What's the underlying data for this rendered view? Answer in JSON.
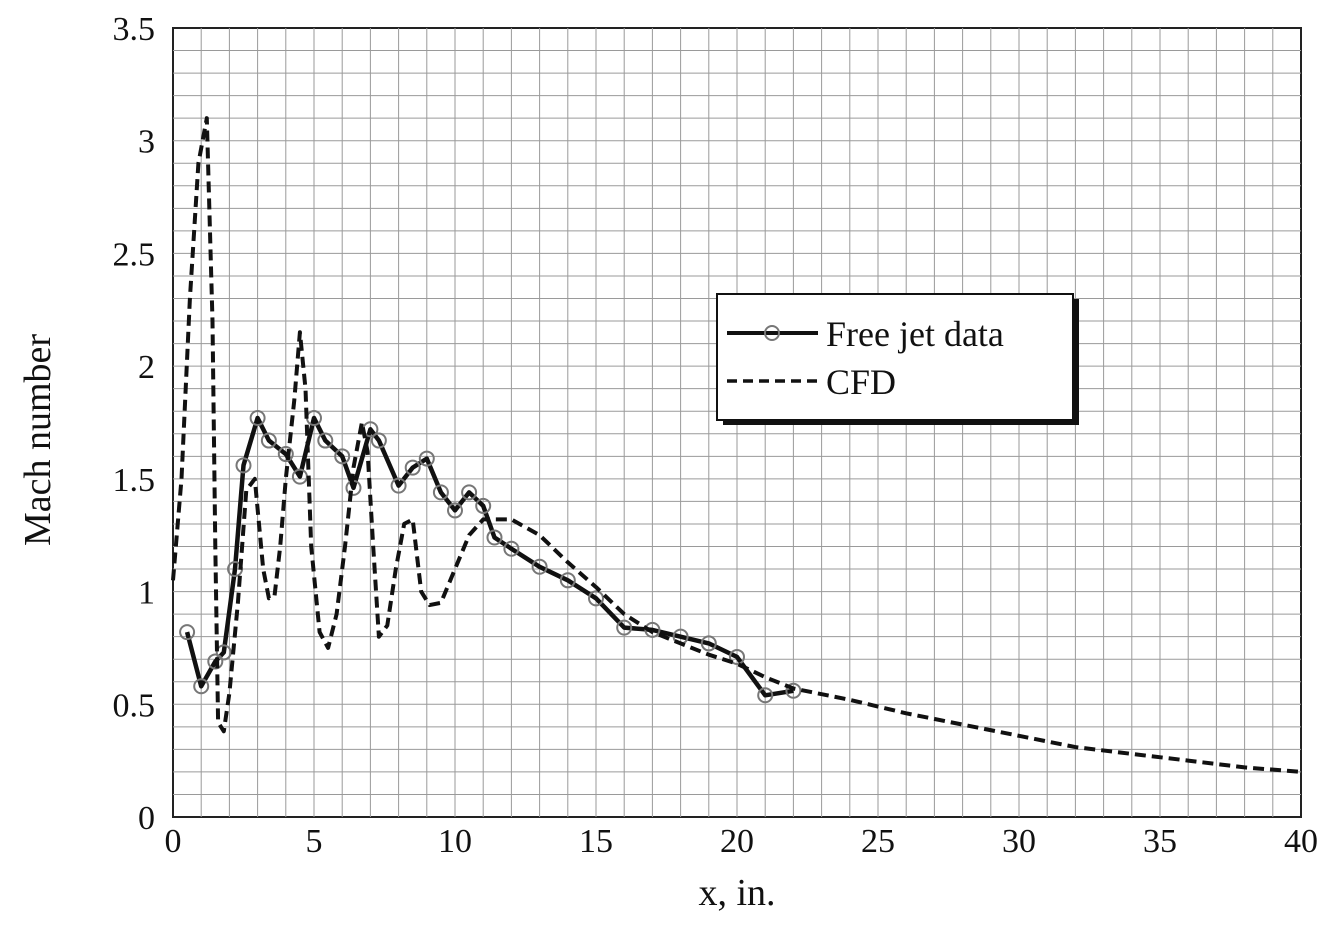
{
  "chart_data": {
    "type": "line",
    "xlabel": "x, in.",
    "ylabel": "Mach number",
    "xlim": [
      0,
      40
    ],
    "ylim": [
      0,
      3.5
    ],
    "x_ticks": [
      "0",
      "5",
      "10",
      "15",
      "20",
      "25",
      "30",
      "35",
      "40"
    ],
    "y_ticks": [
      "0",
      "0.5",
      "1",
      "1.5",
      "2",
      "2.5",
      "3",
      "3.5"
    ],
    "grid": true,
    "legend_position": "upper-right",
    "series": [
      {
        "name": "Free jet data",
        "style": "solid-markers",
        "color": "#111111",
        "x": [
          0.5,
          1.0,
          1.5,
          1.8,
          2.2,
          2.5,
          3.0,
          3.4,
          4.0,
          4.5,
          5.0,
          5.4,
          6.0,
          6.4,
          7.0,
          7.3,
          8.0,
          8.5,
          9.0,
          9.5,
          10.0,
          10.5,
          11.0,
          11.4,
          12.0,
          13.0,
          14.0,
          15.0,
          16.0,
          17.0,
          18.0,
          19.0,
          20.0,
          21.0,
          22.0
        ],
        "y": [
          0.82,
          0.58,
          0.69,
          0.73,
          1.1,
          1.56,
          1.77,
          1.67,
          1.61,
          1.51,
          1.77,
          1.67,
          1.6,
          1.46,
          1.72,
          1.67,
          1.47,
          1.55,
          1.59,
          1.44,
          1.36,
          1.44,
          1.38,
          1.24,
          1.19,
          1.11,
          1.05,
          0.97,
          0.84,
          0.83,
          0.8,
          0.77,
          0.71,
          0.54,
          0.56
        ]
      },
      {
        "name": "CFD",
        "style": "dashed",
        "color": "#111111",
        "x": [
          0.0,
          0.3,
          0.6,
          0.9,
          1.2,
          1.4,
          1.5,
          1.6,
          1.8,
          2.0,
          2.3,
          2.6,
          2.9,
          3.2,
          3.4,
          3.6,
          3.8,
          4.0,
          4.3,
          4.5,
          4.7,
          4.9,
          5.2,
          5.5,
          5.8,
          6.1,
          6.4,
          6.7,
          6.9,
          7.1,
          7.3,
          7.6,
          7.9,
          8.2,
          8.5,
          8.8,
          9.1,
          9.5,
          10.0,
          10.5,
          11.0,
          12.0,
          13.0,
          14.0,
          15.0,
          16.0,
          17.0,
          18.0,
          19.0,
          20.0,
          21.0,
          22.0,
          24.0,
          26.0,
          28.0,
          30.0,
          32.0,
          34.0,
          36.0,
          38.0,
          40.0
        ],
        "y": [
          1.05,
          1.5,
          2.3,
          2.9,
          3.1,
          2.2,
          1.2,
          0.42,
          0.38,
          0.55,
          0.95,
          1.45,
          1.5,
          1.1,
          0.97,
          0.98,
          1.2,
          1.5,
          1.85,
          2.15,
          1.9,
          1.2,
          0.82,
          0.75,
          0.9,
          1.2,
          1.55,
          1.75,
          1.62,
          1.2,
          0.8,
          0.85,
          1.1,
          1.3,
          1.32,
          1.0,
          0.94,
          0.95,
          1.1,
          1.25,
          1.32,
          1.32,
          1.25,
          1.13,
          1.02,
          0.9,
          0.82,
          0.77,
          0.72,
          0.68,
          0.62,
          0.57,
          0.52,
          0.46,
          0.41,
          0.36,
          0.31,
          0.28,
          0.25,
          0.22,
          0.2
        ]
      }
    ]
  }
}
